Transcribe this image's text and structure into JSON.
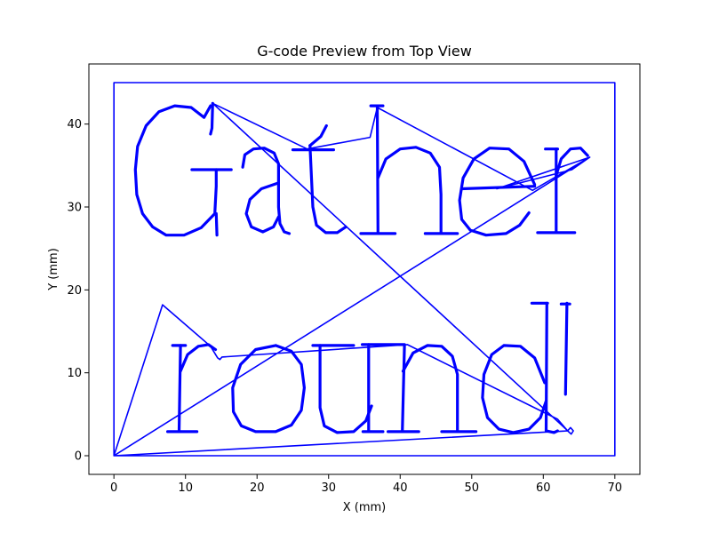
{
  "chart_data": {
    "type": "line",
    "title": "G-code Preview from Top View",
    "xlabel": "X (mm)",
    "ylabel": "Y (mm)",
    "xlim": [
      -3.5,
      73.5
    ],
    "ylim": [
      -2.25,
      47.25
    ],
    "xticks": [
      0,
      10,
      20,
      30,
      40,
      50,
      60,
      70
    ],
    "yticks": [
      0,
      10,
      20,
      30,
      40
    ],
    "grid": false,
    "legend": "none",
    "line_color": "#0000ff",
    "series": [
      {
        "points": [
          [
            0,
            0
          ],
          [
            70,
            0
          ],
          [
            70,
            45
          ],
          [
            0,
            45
          ],
          [
            0,
            0
          ],
          [
            6.8,
            18.2
          ],
          [
            13.5,
            13.2
          ],
          [
            14.5,
            11.8
          ],
          [
            14.8,
            11.6
          ],
          [
            15.1,
            11.9
          ],
          [
            41,
            13.4
          ],
          [
            62,
            4.4
          ],
          [
            63.4,
            3.0
          ],
          [
            63.9,
            2.6
          ],
          [
            64.2,
            3.0
          ],
          [
            63.8,
            3.4
          ],
          [
            63.4,
            3.0
          ],
          [
            0,
            0
          ],
          [
            66.5,
            36
          ],
          [
            53.5,
            32.2
          ],
          [
            64,
            34.5
          ],
          [
            66.5,
            36
          ],
          [
            58.5,
            32
          ],
          [
            36.8,
            42
          ],
          [
            35.8,
            38.4
          ],
          [
            27,
            37
          ],
          [
            13.8,
            42.5
          ],
          [
            62.8,
            3.5
          ],
          [
            63.4,
            3.0
          ]
        ]
      }
    ],
    "text_glyphs": [
      [
        [
          [
            13.5,
            42.2
          ],
          [
            12.6,
            40.8
          ],
          [
            10.8,
            42
          ],
          [
            8.5,
            42.2
          ],
          [
            6.3,
            41.5
          ],
          [
            4.5,
            39.8
          ],
          [
            3.3,
            37.3
          ],
          [
            3.0,
            34.5
          ],
          [
            3.2,
            31.5
          ],
          [
            4.0,
            29.2
          ],
          [
            5.4,
            27.6
          ],
          [
            7.3,
            26.6
          ],
          [
            9.8,
            26.6
          ],
          [
            12.2,
            27.5
          ],
          [
            14.1,
            29.2
          ],
          [
            14.3,
            32.5
          ],
          [
            14.3,
            34.5
          ]
        ],
        [
          [
            10.9,
            34.5
          ],
          [
            16.4,
            34.5
          ]
        ],
        [
          [
            14.3,
            29.2
          ],
          [
            14.4,
            26.6
          ]
        ],
        [
          [
            13.8,
            42.5
          ],
          [
            13.7,
            39.5
          ],
          [
            13.5,
            38.8
          ]
        ],
        [
          [
            18.0,
            34.8
          ],
          [
            18.3,
            36.3
          ],
          [
            19.5,
            37.0
          ],
          [
            21.0,
            37.1
          ],
          [
            22.4,
            36.5
          ],
          [
            23.0,
            35.2
          ],
          [
            23.0,
            30.0
          ],
          [
            23.2,
            28.0
          ],
          [
            23.8,
            27.0
          ],
          [
            24.5,
            26.8
          ]
        ],
        [
          [
            23.0,
            32.9
          ],
          [
            20.6,
            32.2
          ],
          [
            19.0,
            30.9
          ],
          [
            18.5,
            29.2
          ],
          [
            19.2,
            27.6
          ],
          [
            20.8,
            27.0
          ],
          [
            22.3,
            27.6
          ],
          [
            23.0,
            28.8
          ]
        ],
        [
          [
            27.4,
            37.4
          ],
          [
            27.8,
            30.0
          ],
          [
            28.3,
            27.8
          ],
          [
            29.6,
            26.9
          ],
          [
            31.2,
            26.9
          ],
          [
            32.4,
            27.6
          ]
        ],
        [
          [
            25.0,
            36.9
          ],
          [
            30.7,
            36.9
          ]
        ],
        [
          [
            27.4,
            37.4
          ],
          [
            28.9,
            38.5
          ],
          [
            29.7,
            39.8
          ]
        ],
        [
          [
            36.8,
            42.0
          ],
          [
            36.9,
            26.8
          ]
        ],
        [
          [
            35.9,
            42.2
          ],
          [
            37.6,
            42.2
          ]
        ],
        [
          [
            36.9,
            33.5
          ],
          [
            38.0,
            35.8
          ],
          [
            40.0,
            37.0
          ],
          [
            42.2,
            37.2
          ],
          [
            44.2,
            36.5
          ],
          [
            45.5,
            34.8
          ],
          [
            45.7,
            31.5
          ],
          [
            45.7,
            26.8
          ]
        ],
        [
          [
            34.5,
            26.8
          ],
          [
            39.3,
            26.8
          ]
        ],
        [
          [
            43.5,
            26.8
          ],
          [
            48.0,
            26.8
          ]
        ],
        [
          [
            58.8,
            32.7
          ],
          [
            57.3,
            35.5
          ],
          [
            55.2,
            37.0
          ],
          [
            52.5,
            37.1
          ],
          [
            50.3,
            35.8
          ],
          [
            48.8,
            33.5
          ],
          [
            48.3,
            30.8
          ],
          [
            48.6,
            28.5
          ],
          [
            49.8,
            27.2
          ],
          [
            52.0,
            26.6
          ],
          [
            54.8,
            26.8
          ],
          [
            56.7,
            27.8
          ],
          [
            58.0,
            29.3
          ]
        ],
        [
          [
            48.6,
            32.2
          ],
          [
            58.8,
            32.5
          ]
        ],
        [
          [
            61.8,
            37.0
          ],
          [
            61.8,
            26.9
          ]
        ],
        [
          [
            60.3,
            37.0
          ],
          [
            62.0,
            37.0
          ]
        ],
        [
          [
            61.8,
            33.8
          ],
          [
            62.5,
            35.8
          ],
          [
            63.8,
            37.0
          ],
          [
            65.2,
            37.1
          ],
          [
            66.2,
            36.2
          ]
        ],
        [
          [
            59.2,
            26.9
          ],
          [
            64.4,
            26.9
          ]
        ]
      ],
      [
        [
          [
            9.3,
            13.3
          ],
          [
            9.1,
            2.9
          ]
        ],
        [
          [
            8.2,
            13.3
          ],
          [
            10.0,
            13.3
          ]
        ],
        [
          [
            9.3,
            10.2
          ],
          [
            10.3,
            12.2
          ],
          [
            11.8,
            13.2
          ],
          [
            13.2,
            13.4
          ],
          [
            14.2,
            12.8
          ]
        ],
        [
          [
            7.5,
            2.9
          ],
          [
            11.6,
            2.9
          ]
        ],
        [
          [
            22.6,
            13.3
          ],
          [
            19.8,
            12.8
          ],
          [
            17.7,
            11.0
          ],
          [
            16.6,
            8.2
          ],
          [
            16.7,
            5.3
          ],
          [
            17.8,
            3.6
          ],
          [
            19.8,
            2.9
          ],
          [
            22.6,
            2.9
          ],
          [
            24.8,
            3.7
          ],
          [
            26.2,
            5.5
          ],
          [
            26.6,
            8.2
          ],
          [
            26.2,
            11.0
          ],
          [
            24.8,
            12.6
          ],
          [
            22.6,
            13.3
          ]
        ],
        [
          [
            27.8,
            13.3
          ],
          [
            33.5,
            13.3
          ]
        ],
        [
          [
            28.8,
            13.3
          ],
          [
            28.8,
            5.8
          ],
          [
            29.4,
            3.6
          ],
          [
            31.2,
            2.8
          ],
          [
            33.5,
            2.9
          ],
          [
            35.2,
            4.2
          ],
          [
            36.0,
            6.0
          ]
        ],
        [
          [
            35.6,
            13.4
          ],
          [
            35.6,
            2.9
          ]
        ],
        [
          [
            34.8,
            2.9
          ],
          [
            37.6,
            2.9
          ]
        ],
        [
          [
            34.7,
            13.4
          ],
          [
            40.6,
            13.4
          ]
        ],
        [
          [
            40.6,
            13.3
          ],
          [
            40.3,
            2.9
          ]
        ],
        [
          [
            40.4,
            10.2
          ],
          [
            41.8,
            12.4
          ],
          [
            43.8,
            13.3
          ],
          [
            45.8,
            13.2
          ],
          [
            47.3,
            12.0
          ],
          [
            48.0,
            9.8
          ],
          [
            48.0,
            2.9
          ]
        ],
        [
          [
            38.3,
            2.9
          ],
          [
            42.6,
            2.9
          ]
        ],
        [
          [
            45.8,
            2.9
          ],
          [
            50.6,
            2.9
          ]
        ],
        [
          [
            60.2,
            8.8
          ],
          [
            58.8,
            11.8
          ],
          [
            56.8,
            13.2
          ],
          [
            54.5,
            13.3
          ],
          [
            52.8,
            12.2
          ],
          [
            51.7,
            9.8
          ],
          [
            51.5,
            7.0
          ],
          [
            52.2,
            4.6
          ],
          [
            53.8,
            3.2
          ],
          [
            55.8,
            2.8
          ],
          [
            58.0,
            3.2
          ],
          [
            59.6,
            4.6
          ],
          [
            60.4,
            6.6
          ]
        ],
        [
          [
            60.5,
            18.4
          ],
          [
            60.4,
            3.0
          ],
          [
            61.5,
            2.8
          ],
          [
            62.0,
            3.0
          ]
        ],
        [
          [
            58.4,
            18.4
          ],
          [
            60.6,
            18.4
          ]
        ],
        [
          [
            63.3,
            18.4
          ],
          [
            63.1,
            7.4
          ]
        ],
        [
          [
            62.5,
            18.3
          ],
          [
            63.7,
            18.3
          ]
        ]
      ]
    ]
  }
}
